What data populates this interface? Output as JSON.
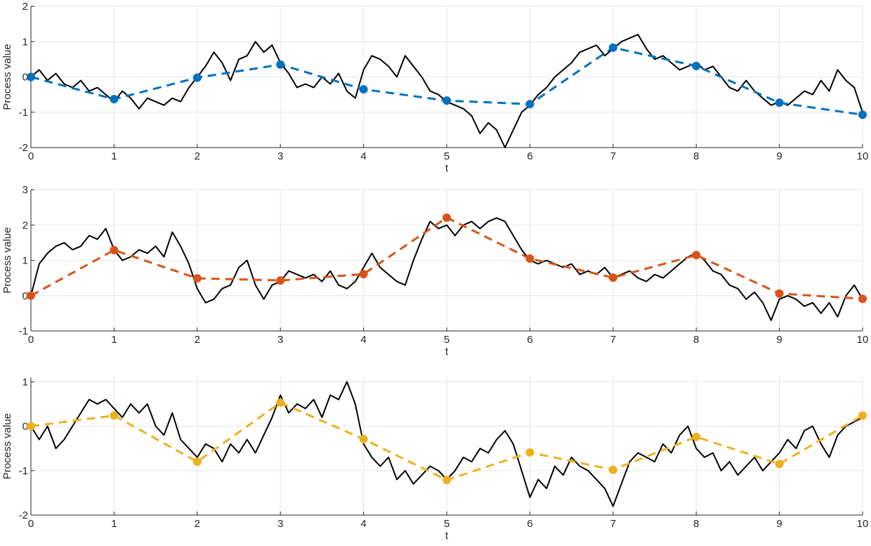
{
  "colors": {
    "background": "#ffffff",
    "grid": "#e6e6e6",
    "axis": "#262626",
    "path": "#000000",
    "series": [
      "#0072BD",
      "#D95319",
      "#EDB120"
    ]
  },
  "chart_data": [
    {
      "type": "line",
      "xlabel": "t",
      "ylabel": "Process value",
      "xlim": [
        0,
        10
      ],
      "ylim": [
        -2,
        2
      ],
      "xticks": [
        "0",
        "1",
        "2",
        "3",
        "4",
        "5",
        "6",
        "7",
        "8",
        "9",
        "10"
      ],
      "yticks": [
        "-2",
        "-1",
        "0",
        "1",
        "2"
      ],
      "grid": true,
      "series": [
        {
          "style": "solid-black",
          "x": [
            0,
            0.1,
            0.2,
            0.3,
            0.4,
            0.5,
            0.6,
            0.7,
            0.8,
            0.9,
            1,
            1.1,
            1.2,
            1.3,
            1.4,
            1.5,
            1.6,
            1.7,
            1.8,
            1.9,
            2,
            2.1,
            2.2,
            2.3,
            2.4,
            2.5,
            2.6,
            2.7,
            2.8,
            2.9,
            3,
            3.1,
            3.2,
            3.3,
            3.4,
            3.5,
            3.6,
            3.7,
            3.8,
            3.9,
            4,
            4.1,
            4.2,
            4.3,
            4.4,
            4.5,
            4.6,
            4.7,
            4.8,
            4.9,
            5,
            5.1,
            5.2,
            5.3,
            5.4,
            5.5,
            5.6,
            5.7,
            5.8,
            5.9,
            6,
            6.1,
            6.2,
            6.3,
            6.4,
            6.5,
            6.6,
            6.7,
            6.8,
            6.9,
            7,
            7.1,
            7.2,
            7.3,
            7.4,
            7.5,
            7.6,
            7.7,
            7.8,
            7.9,
            8,
            8.1,
            8.2,
            8.3,
            8.4,
            8.5,
            8.6,
            8.7,
            8.8,
            8.9,
            9,
            9.1,
            9.2,
            9.3,
            9.4,
            9.5,
            9.6,
            9.7,
            9.8,
            9.9,
            10
          ],
          "y": [
            0,
            0.2,
            -0.1,
            0.1,
            -0.2,
            -0.3,
            -0.1,
            -0.4,
            -0.3,
            -0.5,
            -0.7,
            -0.4,
            -0.6,
            -0.9,
            -0.6,
            -0.7,
            -0.8,
            -0.6,
            -0.7,
            -0.3,
            0,
            0.3,
            0.7,
            0.4,
            -0.1,
            0.5,
            0.6,
            1.0,
            0.7,
            0.9,
            0.4,
            0.1,
            -0.3,
            -0.2,
            -0.3,
            0,
            -0.2,
            0.1,
            -0.4,
            -0.6,
            0.2,
            0.6,
            0.5,
            0.3,
            0,
            0.6,
            0.3,
            0,
            -0.4,
            -0.5,
            -0.7,
            -0.8,
            -0.9,
            -1.1,
            -1.6,
            -1.3,
            -1.5,
            -2.0,
            -1.5,
            -1.0,
            -0.8,
            -0.5,
            -0.3,
            0,
            0.2,
            0.4,
            0.7,
            0.8,
            0.9,
            0.6,
            0.8,
            1.0,
            1.1,
            1.2,
            0.8,
            0.5,
            0.6,
            0.4,
            0.2,
            0.3,
            0.4,
            0.2,
            0.3,
            0,
            -0.3,
            -0.4,
            -0.1,
            -0.4,
            -0.6,
            -0.8,
            -0.7,
            -0.8,
            -0.6,
            -0.4,
            -0.5,
            -0.1,
            -0.4,
            0.2,
            -0.1,
            -0.3,
            -1.0
          ]
        },
        {
          "style": "dashed-markers",
          "x": [
            0,
            1,
            2,
            3,
            4,
            5,
            6,
            7,
            8,
            9,
            10
          ],
          "y": [
            0,
            -0.63,
            -0.02,
            0.35,
            -0.35,
            -0.67,
            -0.77,
            0.83,
            0.31,
            -0.73,
            -1.07
          ]
        }
      ]
    },
    {
      "type": "line",
      "xlabel": "t",
      "ylabel": "Process value",
      "xlim": [
        0,
        10
      ],
      "ylim": [
        -1,
        3
      ],
      "xticks": [
        "0",
        "1",
        "2",
        "3",
        "4",
        "5",
        "6",
        "7",
        "8",
        "9",
        "10"
      ],
      "yticks": [
        "-1",
        "0",
        "1",
        "2",
        "3"
      ],
      "grid": true,
      "series": [
        {
          "style": "solid-black",
          "x": [
            0,
            0.1,
            0.2,
            0.3,
            0.4,
            0.5,
            0.6,
            0.7,
            0.8,
            0.9,
            1,
            1.1,
            1.2,
            1.3,
            1.4,
            1.5,
            1.6,
            1.7,
            1.8,
            1.9,
            2,
            2.1,
            2.2,
            2.3,
            2.4,
            2.5,
            2.6,
            2.7,
            2.8,
            2.9,
            3,
            3.1,
            3.2,
            3.3,
            3.4,
            3.5,
            3.6,
            3.7,
            3.8,
            3.9,
            4,
            4.1,
            4.2,
            4.3,
            4.4,
            4.5,
            4.6,
            4.7,
            4.8,
            4.9,
            5,
            5.1,
            5.2,
            5.3,
            5.4,
            5.5,
            5.6,
            5.7,
            5.8,
            5.9,
            6,
            6.1,
            6.2,
            6.3,
            6.4,
            6.5,
            6.6,
            6.7,
            6.8,
            6.9,
            7,
            7.1,
            7.2,
            7.3,
            7.4,
            7.5,
            7.6,
            7.7,
            7.8,
            7.9,
            8,
            8.1,
            8.2,
            8.3,
            8.4,
            8.5,
            8.6,
            8.7,
            8.8,
            8.9,
            9,
            9.1,
            9.2,
            9.3,
            9.4,
            9.5,
            9.6,
            9.7,
            9.8,
            9.9,
            10
          ],
          "y": [
            0,
            0.9,
            1.2,
            1.4,
            1.5,
            1.3,
            1.4,
            1.7,
            1.6,
            1.9,
            1.3,
            1.0,
            1.1,
            1.3,
            1.2,
            1.4,
            1.1,
            1.8,
            1.4,
            0.9,
            0.2,
            -0.2,
            -0.1,
            0.2,
            0.3,
            0.8,
            1.0,
            0.3,
            -0.1,
            0.3,
            0.4,
            0.7,
            0.6,
            0.5,
            0.6,
            0.4,
            0.7,
            0.3,
            0.2,
            0.4,
            0.8,
            1.2,
            0.8,
            0.6,
            0.4,
            0.3,
            1.0,
            1.6,
            2.1,
            1.9,
            2.0,
            1.7,
            2.0,
            2.1,
            1.9,
            2.1,
            2.2,
            2.1,
            1.7,
            1.3,
            1.0,
            0.9,
            1.0,
            0.9,
            0.8,
            0.9,
            0.6,
            0.7,
            0.6,
            0.8,
            0.5,
            0.6,
            0.7,
            0.5,
            0.4,
            0.6,
            0.5,
            0.7,
            0.9,
            1.1,
            1.2,
            1.0,
            0.7,
            0.6,
            0.3,
            0.2,
            -0.1,
            0.1,
            -0.2,
            -0.7,
            -0.1,
            0,
            -0.1,
            -0.3,
            -0.2,
            -0.5,
            -0.2,
            -0.6,
            0,
            0.3,
            -0.1
          ]
        },
        {
          "style": "dashed-markers",
          "x": [
            0,
            1,
            2,
            3,
            4,
            5,
            6,
            7,
            8,
            9,
            10
          ],
          "y": [
            0,
            1.29,
            0.49,
            0.43,
            0.61,
            2.21,
            1.05,
            0.51,
            1.15,
            0.06,
            -0.09
          ]
        }
      ]
    },
    {
      "type": "line",
      "xlabel": "t",
      "ylabel": "Process value",
      "xlim": [
        0,
        10
      ],
      "ylim": [
        -2,
        1.1
      ],
      "xticks": [
        "0",
        "1",
        "2",
        "3",
        "4",
        "5",
        "6",
        "7",
        "8",
        "9",
        "10"
      ],
      "yticks": [
        "-2",
        "-1",
        "0",
        "1"
      ],
      "grid": true,
      "series": [
        {
          "style": "solid-black",
          "x": [
            0,
            0.1,
            0.2,
            0.3,
            0.4,
            0.5,
            0.6,
            0.7,
            0.8,
            0.9,
            1,
            1.1,
            1.2,
            1.3,
            1.4,
            1.5,
            1.6,
            1.7,
            1.8,
            1.9,
            2,
            2.1,
            2.2,
            2.3,
            2.4,
            2.5,
            2.6,
            2.7,
            2.8,
            2.9,
            3,
            3.1,
            3.2,
            3.3,
            3.4,
            3.5,
            3.6,
            3.7,
            3.8,
            3.9,
            4,
            4.1,
            4.2,
            4.3,
            4.4,
            4.5,
            4.6,
            4.7,
            4.8,
            4.9,
            5,
            5.1,
            5.2,
            5.3,
            5.4,
            5.5,
            5.6,
            5.7,
            5.8,
            5.9,
            6,
            6.1,
            6.2,
            6.3,
            6.4,
            6.5,
            6.6,
            6.7,
            6.8,
            6.9,
            7,
            7.1,
            7.2,
            7.3,
            7.4,
            7.5,
            7.6,
            7.7,
            7.8,
            7.9,
            8,
            8.1,
            8.2,
            8.3,
            8.4,
            8.5,
            8.6,
            8.7,
            8.8,
            8.9,
            9,
            9.1,
            9.2,
            9.3,
            9.4,
            9.5,
            9.6,
            9.7,
            9.8,
            9.9,
            10
          ],
          "y": [
            0,
            -0.3,
            0,
            -0.5,
            -0.3,
            0,
            0.3,
            0.6,
            0.5,
            0.6,
            0.4,
            0.2,
            0.5,
            0.3,
            0.5,
            0,
            -0.2,
            0.3,
            -0.3,
            -0.5,
            -0.7,
            -0.4,
            -0.5,
            -0.8,
            -0.4,
            -0.6,
            -0.3,
            -0.6,
            -0.2,
            0.2,
            0.7,
            0.3,
            0.5,
            0.4,
            0.6,
            0.2,
            0.7,
            0.6,
            1.0,
            0.5,
            -0.4,
            -0.7,
            -0.9,
            -0.7,
            -1.2,
            -1.0,
            -1.3,
            -1.1,
            -0.9,
            -1.0,
            -1.2,
            -1.0,
            -0.7,
            -0.8,
            -0.5,
            -0.6,
            -0.3,
            -0.1,
            -0.4,
            -1.0,
            -1.6,
            -1.2,
            -1.4,
            -0.9,
            -1.1,
            -0.7,
            -0.9,
            -1.0,
            -1.2,
            -1.4,
            -1.8,
            -1.3,
            -0.8,
            -0.6,
            -0.7,
            -0.8,
            -0.4,
            -0.6,
            -0.2,
            0,
            -0.5,
            -0.7,
            -0.6,
            -1.0,
            -0.8,
            -1.1,
            -0.9,
            -0.7,
            -1.0,
            -0.8,
            -0.6,
            -0.3,
            -0.5,
            -0.1,
            0,
            -0.4,
            -0.7,
            -0.2,
            0,
            0.1,
            0.2
          ]
        },
        {
          "style": "dashed-markers",
          "x": [
            0,
            1,
            2,
            3,
            4,
            5,
            6,
            7,
            8,
            9,
            10
          ],
          "y": [
            0,
            0.24,
            -0.8,
            0.53,
            -0.29,
            -1.21,
            -0.59,
            -0.98,
            -0.24,
            -0.85,
            0.24
          ]
        }
      ]
    }
  ]
}
